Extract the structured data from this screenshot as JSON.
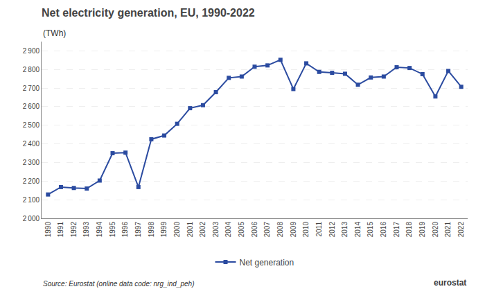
{
  "chart_data": {
    "type": "line",
    "title": "Net electricity generation, EU, 1990-2022",
    "ylabel": "(TWh)",
    "x": [
      1990,
      1991,
      1992,
      1993,
      1994,
      1995,
      1996,
      1997,
      1998,
      1999,
      2000,
      2001,
      2002,
      2003,
      2004,
      2005,
      2006,
      2007,
      2008,
      2009,
      2010,
      2011,
      2012,
      2013,
      2014,
      2015,
      2016,
      2017,
      2018,
      2019,
      2020,
      2021,
      2022
    ],
    "series": [
      {
        "name": "Net generation",
        "color": "#2B4BA0",
        "marker": "square",
        "line_style": "solid",
        "values": [
          2128,
          2168,
          2163,
          2160,
          2203,
          2350,
          2353,
          2168,
          2425,
          2445,
          2508,
          2592,
          2608,
          2678,
          2755,
          2762,
          2815,
          2822,
          2852,
          2695,
          2833,
          2787,
          2782,
          2777,
          2718,
          2757,
          2762,
          2812,
          2808,
          2775,
          2655,
          2792,
          2707
        ]
      }
    ],
    "xlim": [
      1989.5,
      2022.5
    ],
    "xticks": [
      1990,
      1991,
      1992,
      1993,
      1994,
      1995,
      1996,
      1997,
      1998,
      1999,
      2000,
      2001,
      2002,
      2003,
      2004,
      2005,
      2006,
      2007,
      2008,
      2009,
      2010,
      2011,
      2012,
      2013,
      2014,
      2015,
      2016,
      2017,
      2018,
      2019,
      2020,
      2021,
      2022
    ],
    "ylim": [
      2000,
      2950
    ],
    "yticks": [
      {
        "value": 2000,
        "label": "2 000"
      },
      {
        "value": 2100,
        "label": "2 100"
      },
      {
        "value": 2200,
        "label": "2 200"
      },
      {
        "value": 2300,
        "label": "2 300"
      },
      {
        "value": 2400,
        "label": "2 400"
      },
      {
        "value": 2500,
        "label": "2 500"
      },
      {
        "value": 2600,
        "label": "2 600"
      },
      {
        "value": 2700,
        "label": "2 700"
      },
      {
        "value": 2800,
        "label": "2 800"
      },
      {
        "value": 2900,
        "label": "2 900"
      }
    ],
    "grid": true,
    "legend": "bottom",
    "annotations": [
      "Source: Eurostat (online data code: nrg_ind_peh)",
      "eurostat"
    ]
  }
}
